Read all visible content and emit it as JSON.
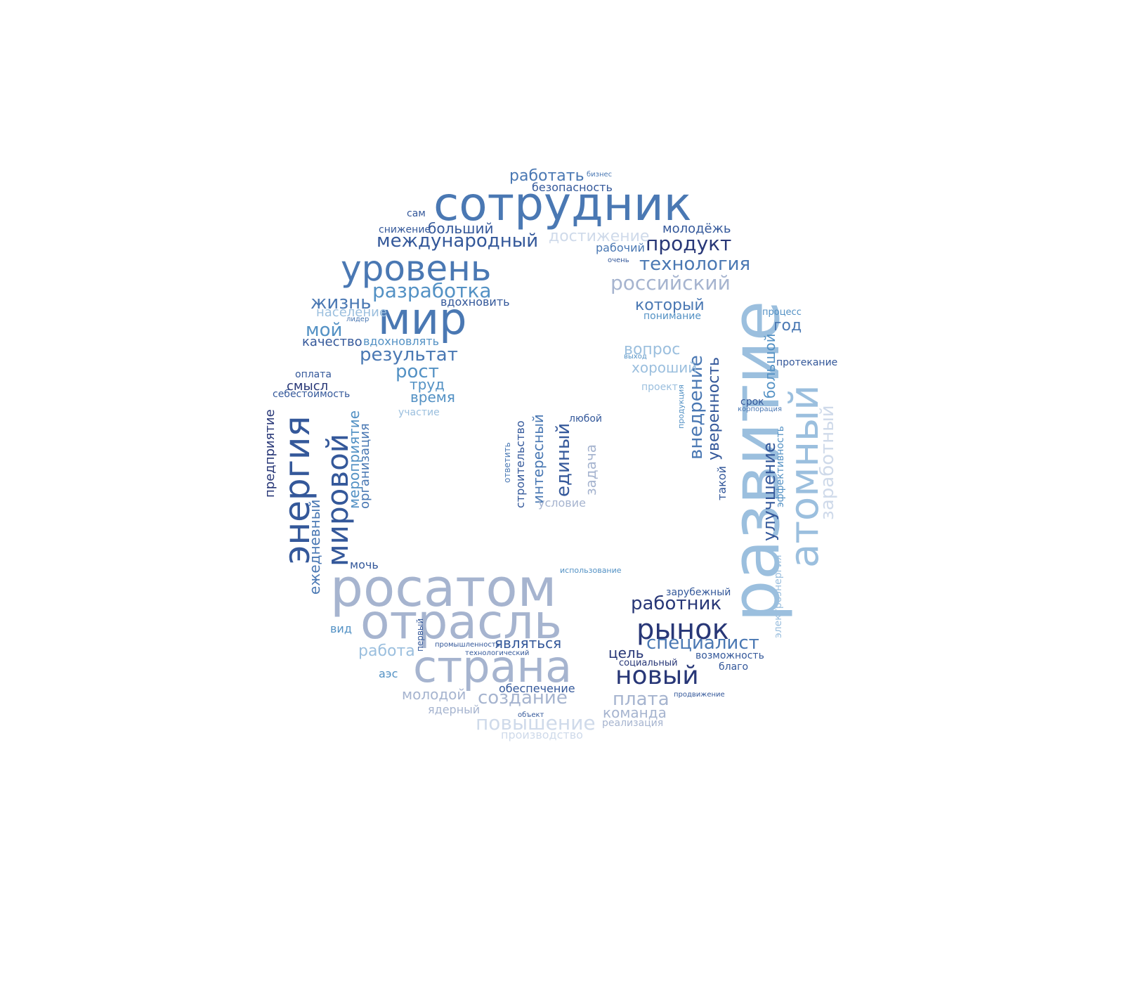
{
  "word_cloud": {
    "colors": {
      "navy": "#283777",
      "dark_blue": "#34589a",
      "steel_blue": "#4a78b3",
      "mid_blue": "#5391c4",
      "light_blue": "#9bbfde",
      "grey_blue": "#a6b4cf",
      "pale": "#cfdaea"
    },
    "words": [
      {
        "text": "сотрудник"
      },
      {
        "text": "развитие"
      },
      {
        "text": "росатом"
      },
      {
        "text": "отрасль"
      },
      {
        "text": "страна"
      },
      {
        "text": "мир"
      },
      {
        "text": "уровень"
      },
      {
        "text": "атомный"
      },
      {
        "text": "энергия"
      },
      {
        "text": "мировой"
      },
      {
        "text": "рынок"
      },
      {
        "text": "новый"
      },
      {
        "text": "международный"
      },
      {
        "text": "разработка"
      },
      {
        "text": "технология"
      },
      {
        "text": "российский"
      },
      {
        "text": "продукт"
      },
      {
        "text": "работник"
      },
      {
        "text": "специалист"
      },
      {
        "text": "создание"
      },
      {
        "text": "повышение"
      },
      {
        "text": "плата"
      },
      {
        "text": "внедрение"
      },
      {
        "text": "результат"
      },
      {
        "text": "рост"
      },
      {
        "text": "заработный"
      },
      {
        "text": "улучшение"
      },
      {
        "text": "работать"
      },
      {
        "text": "безопасность"
      },
      {
        "text": "бизнес"
      },
      {
        "text": "сам"
      },
      {
        "text": "снижение"
      },
      {
        "text": "больший"
      },
      {
        "text": "достижение"
      },
      {
        "text": "молодёжь"
      },
      {
        "text": "рабочий"
      },
      {
        "text": "очень"
      },
      {
        "text": "жизнь"
      },
      {
        "text": "население"
      },
      {
        "text": "лидер"
      },
      {
        "text": "вдохновить"
      },
      {
        "text": "мой"
      },
      {
        "text": "качество"
      },
      {
        "text": "вдохновлять"
      },
      {
        "text": "который"
      },
      {
        "text": "понимание"
      },
      {
        "text": "процесс"
      },
      {
        "text": "год"
      },
      {
        "text": "вопрос"
      },
      {
        "text": "выход"
      },
      {
        "text": "хороший"
      },
      {
        "text": "протекание"
      },
      {
        "text": "большой"
      },
      {
        "text": "проект"
      },
      {
        "text": "уверенность"
      },
      {
        "text": "продукция"
      },
      {
        "text": "срок"
      },
      {
        "text": "корпорация"
      },
      {
        "text": "эффективность"
      },
      {
        "text": "такой"
      },
      {
        "text": "электроэнергия"
      },
      {
        "text": "труд"
      },
      {
        "text": "время"
      },
      {
        "text": "участие"
      },
      {
        "text": "оплата"
      },
      {
        "text": "смысл"
      },
      {
        "text": "себестоимость"
      },
      {
        "text": "предприятие"
      },
      {
        "text": "мероприятие"
      },
      {
        "text": "организация"
      },
      {
        "text": "ежедневный"
      },
      {
        "text": "мочь"
      },
      {
        "text": "строительство"
      },
      {
        "text": "ответить"
      },
      {
        "text": "интересный"
      },
      {
        "text": "единый"
      },
      {
        "text": "любой"
      },
      {
        "text": "задача"
      },
      {
        "text": "условие"
      },
      {
        "text": "использование"
      },
      {
        "text": "зарубежный"
      },
      {
        "text": "цель"
      },
      {
        "text": "социальный"
      },
      {
        "text": "возможность"
      },
      {
        "text": "благо"
      },
      {
        "text": "продвижение"
      },
      {
        "text": "команда"
      },
      {
        "text": "реализация"
      },
      {
        "text": "вид"
      },
      {
        "text": "первый"
      },
      {
        "text": "промышленность"
      },
      {
        "text": "технологический"
      },
      {
        "text": "являться"
      },
      {
        "text": "работа"
      },
      {
        "text": "аэс"
      },
      {
        "text": "молодой"
      },
      {
        "text": "обеспечение"
      },
      {
        "text": "ядерный"
      },
      {
        "text": "объект"
      },
      {
        "text": "производство"
      }
    ]
  }
}
